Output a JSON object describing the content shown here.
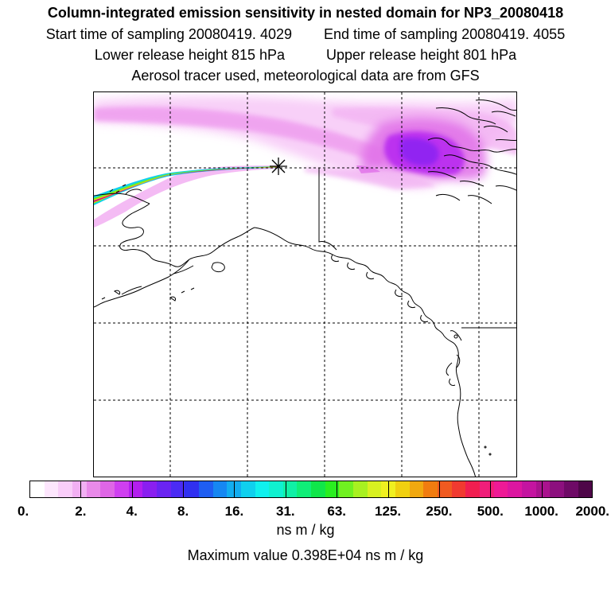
{
  "titles": {
    "line1": "Column-integrated emission sensitivity in nested domain for NP3_20080418",
    "start_label": "Start time of sampling 20080419.  4029",
    "end_label": "End time of sampling 20080419.  4055",
    "lower_label": "Lower release height  815 hPa",
    "upper_label": "Upper release height  801 hPa",
    "line4": "Aerosol tracer used, meteorological data are from GFS"
  },
  "colorbar": {
    "colors": [
      "#ffffff",
      "#fde6fd",
      "#f9cdf9",
      "#f2b0f3",
      "#e98ae9",
      "#df66e6",
      "#cf3ff0",
      "#b31fef",
      "#8a1ff0",
      "#6a24f2",
      "#4b2bf4",
      "#3030f0",
      "#1f5ef2",
      "#1687f2",
      "#12adf0",
      "#10d0ee",
      "#10f0ee",
      "#10f0d0",
      "#10f0a6",
      "#10ee78",
      "#10e64a",
      "#2aee20",
      "#70f020",
      "#a8f020",
      "#d8f020",
      "#f0f020",
      "#f0d010",
      "#f0a810",
      "#f07c10",
      "#f05a20",
      "#f03a30",
      "#f01e50",
      "#f01e7a",
      "#ee1a96",
      "#dc16a0",
      "#c414a0",
      "#aa128e",
      "#8c107e",
      "#6e0a66",
      "#4e0648"
    ],
    "tick_labels": [
      "0.",
      "2.",
      "4.",
      "8.",
      "16.",
      "31.",
      "63.",
      "125.",
      "250.",
      "500.",
      "1000.",
      "2000."
    ],
    "unit": "ns m / kg",
    "max_value_text": "Maximum value  0.398E+04 ns m / kg"
  },
  "map": {
    "release_marker": "star-icon",
    "features": [
      "emission-sensitivity-plume",
      "coastline",
      "graticule",
      "border"
    ]
  }
}
